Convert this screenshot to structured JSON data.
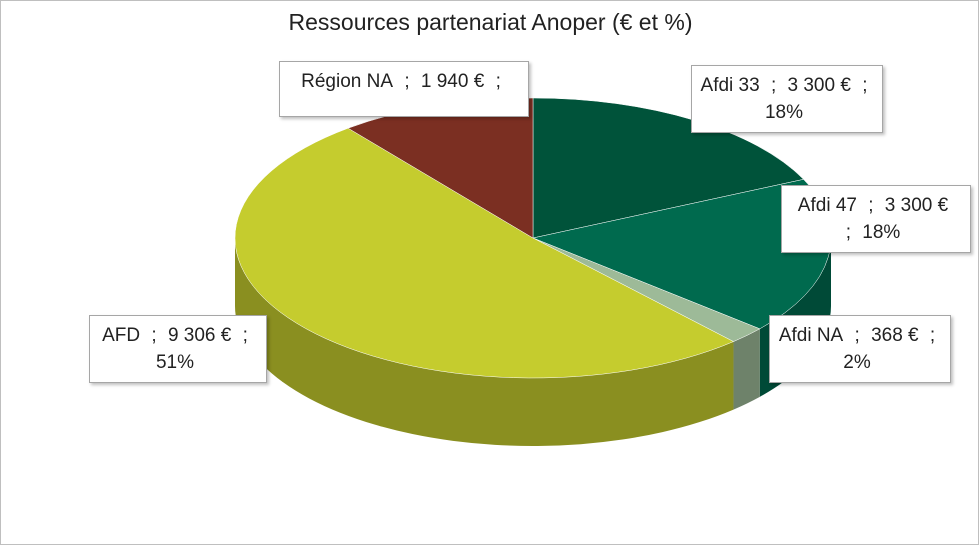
{
  "chart_data": {
    "type": "pie",
    "title": "Ressources partenariat Anoper (€ et %)",
    "categories": [
      "Afdi 33",
      "Afdi 47",
      "Afdi NA",
      "AFD",
      "Région NA"
    ],
    "values": [
      3300,
      3300,
      368,
      9306,
      1940
    ],
    "value_labels": [
      "3 300 €",
      "3 300 €",
      "368 €",
      "9 306 €",
      "1 940 €"
    ],
    "percents": [
      18,
      18,
      2,
      51,
      null
    ],
    "percent_labels": [
      "18%",
      "18%",
      "2%",
      "51%",
      null
    ],
    "separator": ";",
    "colors": [
      "#00533a",
      "#006a4e",
      "#9dba98",
      "#c5cc2e",
      "#7b2f22"
    ]
  }
}
